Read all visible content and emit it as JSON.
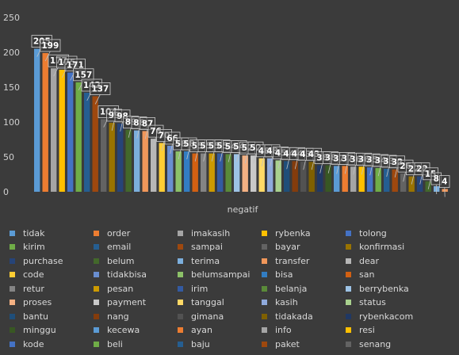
{
  "chart_data": {
    "type": "bar",
    "title": "",
    "xlabel": "negatif",
    "ylabel": "",
    "ylim": [
      0,
      250
    ],
    "yticks": [
      "0",
      "50",
      "100",
      "150",
      "200",
      "250"
    ],
    "grid": false,
    "legend_position": "bottom",
    "series": [
      {
        "name": "tidak",
        "value": 205,
        "color": "#5b9bd5"
      },
      {
        "name": "order",
        "value": 199,
        "color": "#ed7d31"
      },
      {
        "name": "imakasih",
        "value": 177,
        "color": "#a5a5a5"
      },
      {
        "name": "rybenka",
        "value": 175,
        "color": "#ffc000"
      },
      {
        "name": "tolong",
        "value": 171,
        "color": "#4472c4"
      },
      {
        "name": "kirim",
        "value": 157,
        "color": "#70ad47"
      },
      {
        "name": "email",
        "value": 142,
        "color": "#255e91"
      },
      {
        "name": "sampai",
        "value": 137,
        "color": "#9e480e"
      },
      {
        "name": "bayar",
        "value": 104,
        "color": "#636363"
      },
      {
        "name": "konfirmasi",
        "value": 99,
        "color": "#997300"
      },
      {
        "name": "purchase",
        "value": 98,
        "color": "#264478"
      },
      {
        "name": "belum",
        "value": 89,
        "color": "#43682b"
      },
      {
        "name": "terima",
        "value": 88,
        "color": "#7cafdd"
      },
      {
        "name": "transfer",
        "value": 87,
        "color": "#f1975a"
      },
      {
        "name": "dear",
        "value": 76,
        "color": "#b7b7b7"
      },
      {
        "name": "code",
        "value": 70,
        "color": "#ffcd33"
      },
      {
        "name": "tidakbisa",
        "value": 66,
        "color": "#698ed0"
      },
      {
        "name": "belumsampai",
        "value": 58,
        "color": "#8cc168"
      },
      {
        "name": "bisa",
        "value": 58,
        "color": "#327dc2"
      },
      {
        "name": "san",
        "value": 55,
        "color": "#d26012"
      },
      {
        "name": "retur",
        "value": 55,
        "color": "#848484"
      },
      {
        "name": "pesan",
        "value": 55,
        "color": "#cc9a00"
      },
      {
        "name": "irim",
        "value": 55,
        "color": "#335aa1"
      },
      {
        "name": "belanja",
        "value": 54,
        "color": "#5a8a39"
      },
      {
        "name": "berrybenka",
        "value": 54,
        "color": "#9dc3e6"
      },
      {
        "name": "proses",
        "value": 52,
        "color": "#f4b183"
      },
      {
        "name": "payment",
        "value": 52,
        "color": "#c9c9c9"
      },
      {
        "name": "tanggal",
        "value": 48,
        "color": "#ffd966"
      },
      {
        "name": "kasih",
        "value": 48,
        "color": "#8faadc"
      },
      {
        "name": "status",
        "value": 45,
        "color": "#a9d18e"
      },
      {
        "name": "bantu",
        "value": 44,
        "color": "#1f4e79"
      },
      {
        "name": "nang",
        "value": 44,
        "color": "#843c0c"
      },
      {
        "name": "gimana",
        "value": 43,
        "color": "#525252"
      },
      {
        "name": "tidakada",
        "value": 43,
        "color": "#7f6000"
      },
      {
        "name": "rybenkacom",
        "value": 38,
        "color": "#203864"
      },
      {
        "name": "minggu",
        "value": 38,
        "color": "#385723"
      },
      {
        "name": "kecewa",
        "value": 37,
        "color": "#5b9bd5"
      },
      {
        "name": "ayan",
        "value": 37,
        "color": "#ed7d31"
      },
      {
        "name": "info",
        "value": 36,
        "color": "#a5a5a5"
      },
      {
        "name": "resi",
        "value": 36,
        "color": "#ffc000"
      },
      {
        "name": "kode",
        "value": 35,
        "color": "#4472c4"
      },
      {
        "name": "beli",
        "value": 34,
        "color": "#70ad47"
      },
      {
        "name": "baju",
        "value": 33,
        "color": "#255e91"
      },
      {
        "name": "paket",
        "value": 32,
        "color": "#9e480e"
      },
      {
        "name": "senang",
        "value": 26,
        "color": "#636363"
      },
      {
        "name": "",
        "value": 22,
        "color": "#997300"
      },
      {
        "name": "",
        "value": 22,
        "color": "#264478"
      },
      {
        "name": "",
        "value": 15,
        "color": "#43682b"
      },
      {
        "name": "",
        "value": 8,
        "color": "#7cafdd"
      },
      {
        "name": "",
        "value": 4,
        "color": "#f1975a"
      }
    ]
  }
}
